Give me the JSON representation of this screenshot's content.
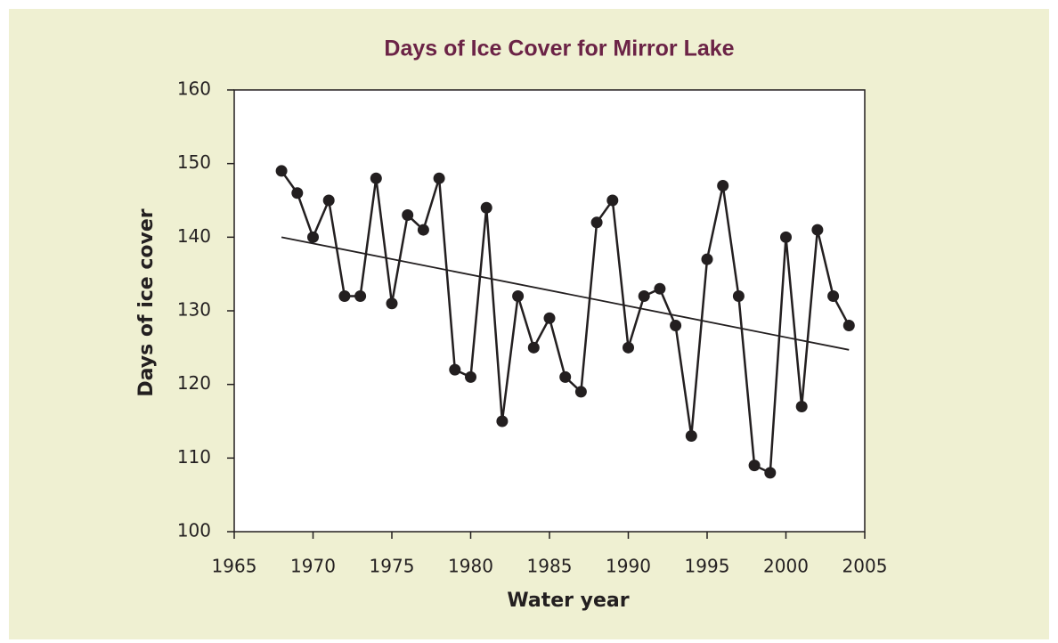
{
  "chart_data": {
    "type": "line",
    "title": "Days of Ice Cover for Mirror Lake",
    "x_label": "Water year",
    "y_label": "Days of ice cover",
    "series": [
      {
        "color": "#231f20",
        "markers": true,
        "x": [
          1968,
          1969,
          1970,
          1971,
          1972,
          1973,
          1974,
          1975,
          1976,
          1977,
          1978,
          1979,
          1980,
          1981,
          1982,
          1983,
          1984,
          1985,
          1986,
          1987,
          1988,
          1989,
          1990,
          1991,
          1992,
          1993,
          1994,
          1995,
          1996,
          1997,
          1998,
          1999,
          2000,
          2001,
          2002,
          2003,
          2004
        ],
        "values": [
          149,
          146,
          140,
          145,
          132,
          132,
          148,
          131,
          143,
          141,
          148,
          122,
          121,
          144,
          115,
          132,
          125,
          129,
          121,
          119,
          142,
          145,
          125,
          132,
          133,
          128,
          113,
          137,
          147,
          132,
          109,
          108,
          140,
          117,
          141,
          132,
          128
        ]
      },
      {
        "color": "#231f20",
        "markers": false,
        "x": [
          1968,
          2004
        ],
        "values": [
          140,
          124.7
        ]
      }
    ],
    "xlim": [
      1965,
      2005
    ],
    "xticks": [
      1965,
      1970,
      1975,
      1980,
      1985,
      1990,
      1995,
      2000,
      2005
    ],
    "ylim": [
      100,
      160
    ],
    "yticks": [
      100,
      110,
      120,
      130,
      140,
      150,
      160
    ]
  }
}
